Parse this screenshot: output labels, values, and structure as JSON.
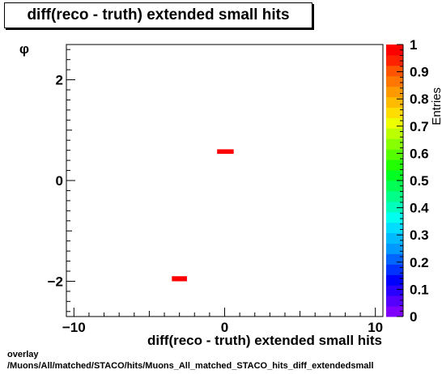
{
  "chart_data": {
    "type": "heatmap",
    "title": "diff(reco - truth) extended small hits",
    "xlabel": "diff(reco - truth) extended small hits",
    "ylabel": "φ",
    "zlabel": "Entries",
    "xlim": [
      -10.5,
      10.5
    ],
    "ylim": [
      -2.7,
      2.7
    ],
    "zlim": [
      0,
      1
    ],
    "x_ticks": [
      -10,
      0,
      10
    ],
    "y_ticks": [
      -2,
      0,
      2
    ],
    "z_ticks": [
      "0",
      "0.1",
      "0.2",
      "0.3",
      "0.4",
      "0.5",
      "0.6",
      "0.7",
      "0.8",
      "0.9",
      "1"
    ],
    "bins": [
      {
        "x0": -3.5,
        "x1": -2.5,
        "y0": -2.0,
        "y1": -1.9,
        "value": 1
      },
      {
        "x0": -0.5,
        "x1": 0.6,
        "y0": 0.53,
        "y1": 0.62,
        "value": 1
      }
    ],
    "palette": [
      "#8000ff",
      "#5500ff",
      "#2a00ff",
      "#0000ff",
      "#0033ff",
      "#0066ff",
      "#0099ff",
      "#00bbff",
      "#00ddff",
      "#00ffee",
      "#00ffbb",
      "#00ff88",
      "#00ff55",
      "#00ff22",
      "#22ff00",
      "#55ff00",
      "#88ff00",
      "#bbff00",
      "#eeff00",
      "#ffdd00",
      "#ffbb00",
      "#ff9900",
      "#ff7700",
      "#ff5500",
      "#ff2200",
      "#ff0000"
    ],
    "grid": false
  },
  "footer": {
    "line1": "overlay",
    "line2": "/Muons/All/matched/STACO/hits/Muons_All_matched_STACO_hits_diff_extendedsmall"
  }
}
